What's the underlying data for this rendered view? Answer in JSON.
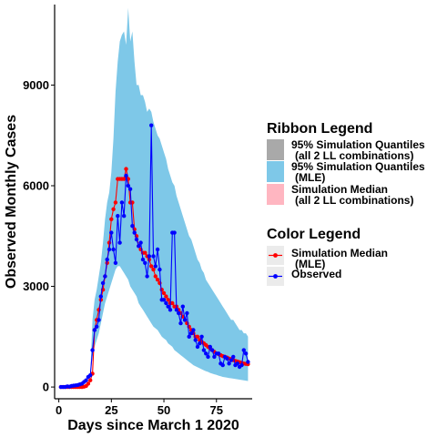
{
  "chart_data": {
    "type": "line",
    "xlabel": "Days since March 1 2020",
    "ylabel": "Observed Monthly Cases",
    "xlim": [
      -2,
      92
    ],
    "ylim": [
      -350,
      11400
    ],
    "x_ticks": [
      0,
      25,
      50,
      75
    ],
    "y_ticks": [
      0,
      3000,
      6000,
      9000
    ],
    "x_tick_labels": [
      "0",
      "25",
      "50",
      "75"
    ],
    "y_tick_labels": [
      "0",
      "3000",
      "6000",
      "9000"
    ],
    "grid": false,
    "ribbon": {
      "name_lines": [
        "95% Simulation Quantiles",
        "(MLE)"
      ],
      "color": "#7ec8e8",
      "x": [
        14,
        15,
        16,
        17,
        18,
        19,
        20,
        21,
        22,
        23,
        24,
        25,
        26,
        27,
        28,
        29,
        30,
        31,
        32,
        33,
        34,
        35,
        36,
        37,
        38,
        39,
        40,
        41,
        42,
        43,
        44,
        45,
        46,
        47,
        48,
        49,
        50,
        51,
        52,
        53,
        54,
        55,
        56,
        57,
        58,
        59,
        60,
        61,
        62,
        63,
        64,
        65,
        66,
        67,
        68,
        69,
        70,
        71,
        72,
        73,
        74,
        75,
        76,
        77,
        78,
        79,
        80,
        81,
        82,
        83,
        84,
        85,
        86,
        87,
        88,
        89,
        90
      ],
      "upper": [
        0,
        400,
        2000,
        2600,
        2900,
        3300,
        3700,
        4300,
        5000,
        5500,
        5800,
        6400,
        7400,
        8800,
        9700,
        10300,
        10500,
        10600,
        10200,
        11300,
        10300,
        10600,
        9700,
        9000,
        9000,
        8700,
        8700,
        8500,
        8200,
        8300,
        8200,
        7900,
        7700,
        7500,
        7400,
        7200,
        7000,
        6800,
        6500,
        6300,
        6100,
        6000,
        5700,
        5500,
        5300,
        5100,
        4900,
        4700,
        4500,
        4400,
        4200,
        4000,
        3800,
        3700,
        3500,
        3400,
        3200,
        3100,
        3000,
        2900,
        2800,
        2700,
        2600,
        2500,
        2400,
        2300,
        2200,
        2100,
        2000,
        2000,
        1900,
        1800,
        1700,
        1700,
        1600,
        1600,
        1500
      ],
      "lower": [
        0,
        300,
        900,
        1200,
        1400,
        1600,
        1900,
        2200,
        2500,
        2700,
        2900,
        3100,
        3300,
        3500,
        3600,
        3600,
        3500,
        3400,
        3300,
        3200,
        3000,
        2900,
        2800,
        2700,
        2500,
        2400,
        2300,
        2200,
        2100,
        2000,
        1900,
        1800,
        1750,
        1700,
        1600,
        1500,
        1450,
        1400,
        1300,
        1250,
        1200,
        1100,
        1050,
        1000,
        950,
        900,
        850,
        800,
        750,
        700,
        650,
        620,
        590,
        560,
        530,
        500,
        470,
        450,
        420,
        400,
        380,
        360,
        340,
        320,
        300,
        290,
        280,
        270,
        260,
        250,
        240,
        230,
        220,
        210,
        200,
        190,
        180
      ]
    },
    "series": [
      {
        "name_lines": [
          "Simulation Median",
          "(MLE)"
        ],
        "color": "#ff0000",
        "x": [
          1,
          2,
          3,
          4,
          5,
          6,
          7,
          8,
          9,
          10,
          11,
          12,
          13,
          14,
          15,
          16,
          17,
          18,
          19,
          20,
          21,
          22,
          23,
          24,
          25,
          26,
          27,
          28,
          29,
          30,
          31,
          32,
          33,
          34,
          35,
          36,
          37,
          38,
          39,
          40,
          41,
          42,
          43,
          44,
          45,
          46,
          47,
          48,
          49,
          50,
          51,
          52,
          53,
          54,
          55,
          56,
          57,
          58,
          59,
          60,
          61,
          62,
          63,
          64,
          65,
          66,
          67,
          68,
          69,
          70,
          71,
          72,
          73,
          74,
          75,
          76,
          77,
          78,
          79,
          80,
          81,
          82,
          83,
          84,
          85,
          86,
          87,
          88,
          89,
          90
        ],
        "y": [
          0,
          0,
          0,
          0,
          0,
          0,
          0,
          0,
          0,
          0,
          0,
          10,
          30,
          100,
          200,
          400,
          1700,
          2000,
          2300,
          2600,
          2900,
          3300,
          3700,
          4300,
          5000,
          5300,
          5500,
          6200,
          6200,
          6200,
          6200,
          6500,
          6200,
          5500,
          5500,
          4700,
          4500,
          4200,
          4100,
          4000,
          4000,
          3900,
          3800,
          3600,
          3500,
          3300,
          3200,
          3100,
          2900,
          2800,
          2700,
          2600,
          2500,
          2500,
          2400,
          2400,
          2300,
          2200,
          2100,
          2000,
          1900,
          1800,
          1700,
          1600,
          1500,
          1500,
          1400,
          1350,
          1300,
          1250,
          1200,
          1150,
          1100,
          1050,
          1000,
          980,
          950,
          920,
          900,
          880,
          850,
          830,
          800,
          780,
          760,
          740,
          720,
          700,
          690,
          680
        ]
      },
      {
        "name_lines": [
          "Observed"
        ],
        "color": "#0000ff",
        "x": [
          1,
          2,
          3,
          4,
          5,
          6,
          7,
          8,
          9,
          10,
          11,
          12,
          13,
          14,
          15,
          16,
          17,
          18,
          19,
          20,
          21,
          22,
          23,
          24,
          25,
          26,
          27,
          28,
          29,
          30,
          31,
          32,
          33,
          34,
          35,
          36,
          37,
          38,
          39,
          40,
          41,
          42,
          43,
          44,
          45,
          46,
          47,
          48,
          49,
          50,
          51,
          52,
          53,
          54,
          55,
          56,
          57,
          58,
          59,
          60,
          61,
          62,
          63,
          64,
          65,
          66,
          67,
          68,
          69,
          70,
          71,
          72,
          73,
          74,
          75,
          76,
          77,
          78,
          79,
          80,
          81,
          82,
          83,
          84,
          85,
          86,
          87,
          88,
          89,
          90
        ],
        "y": [
          0,
          0,
          0,
          20,
          10,
          30,
          40,
          50,
          60,
          80,
          100,
          150,
          200,
          300,
          350,
          1100,
          1700,
          1800,
          2000,
          2700,
          3100,
          3300,
          3800,
          4100,
          4600,
          4100,
          3700,
          5100,
          4300,
          5500,
          5100,
          6300,
          6000,
          5900,
          4800,
          4600,
          4400,
          4200,
          4300,
          3800,
          3700,
          3300,
          3900,
          7800,
          3900,
          3600,
          4100,
          3500,
          2600,
          2600,
          2500,
          2400,
          2300,
          4600,
          4600,
          2300,
          2200,
          1900,
          2400,
          2000,
          2200,
          1500,
          1600,
          1700,
          1400,
          1200,
          1300,
          1500,
          1100,
          1000,
          900,
          1200,
          1100,
          900,
          1000,
          1000,
          700,
          650,
          900,
          850,
          700,
          800,
          900,
          650,
          700,
          600,
          650,
          1100,
          1000,
          750
        ]
      }
    ],
    "legend": {
      "placement": "right",
      "ribbon_title": "Ribbon  Legend",
      "ribbon_entries": [
        {
          "lines": [
            "95% Simulation Quantiles",
            "(all 2 LL combinations)"
          ],
          "color": "#a9a9a9"
        },
        {
          "lines": [
            "95% Simulation Quantiles",
            "(MLE)"
          ],
          "color": "#7ec8e8"
        },
        {
          "lines": [
            "Simulation Median",
            "(all 2 LL combinations)"
          ],
          "color": "#ffb6c1"
        }
      ],
      "color_title": "Color  Legend",
      "color_entries": [
        {
          "lines": [
            "Simulation Median",
            "(MLE)"
          ],
          "color": "#ff0000"
        },
        {
          "lines": [
            "Observed"
          ],
          "color": "#0000ff"
        }
      ]
    }
  }
}
